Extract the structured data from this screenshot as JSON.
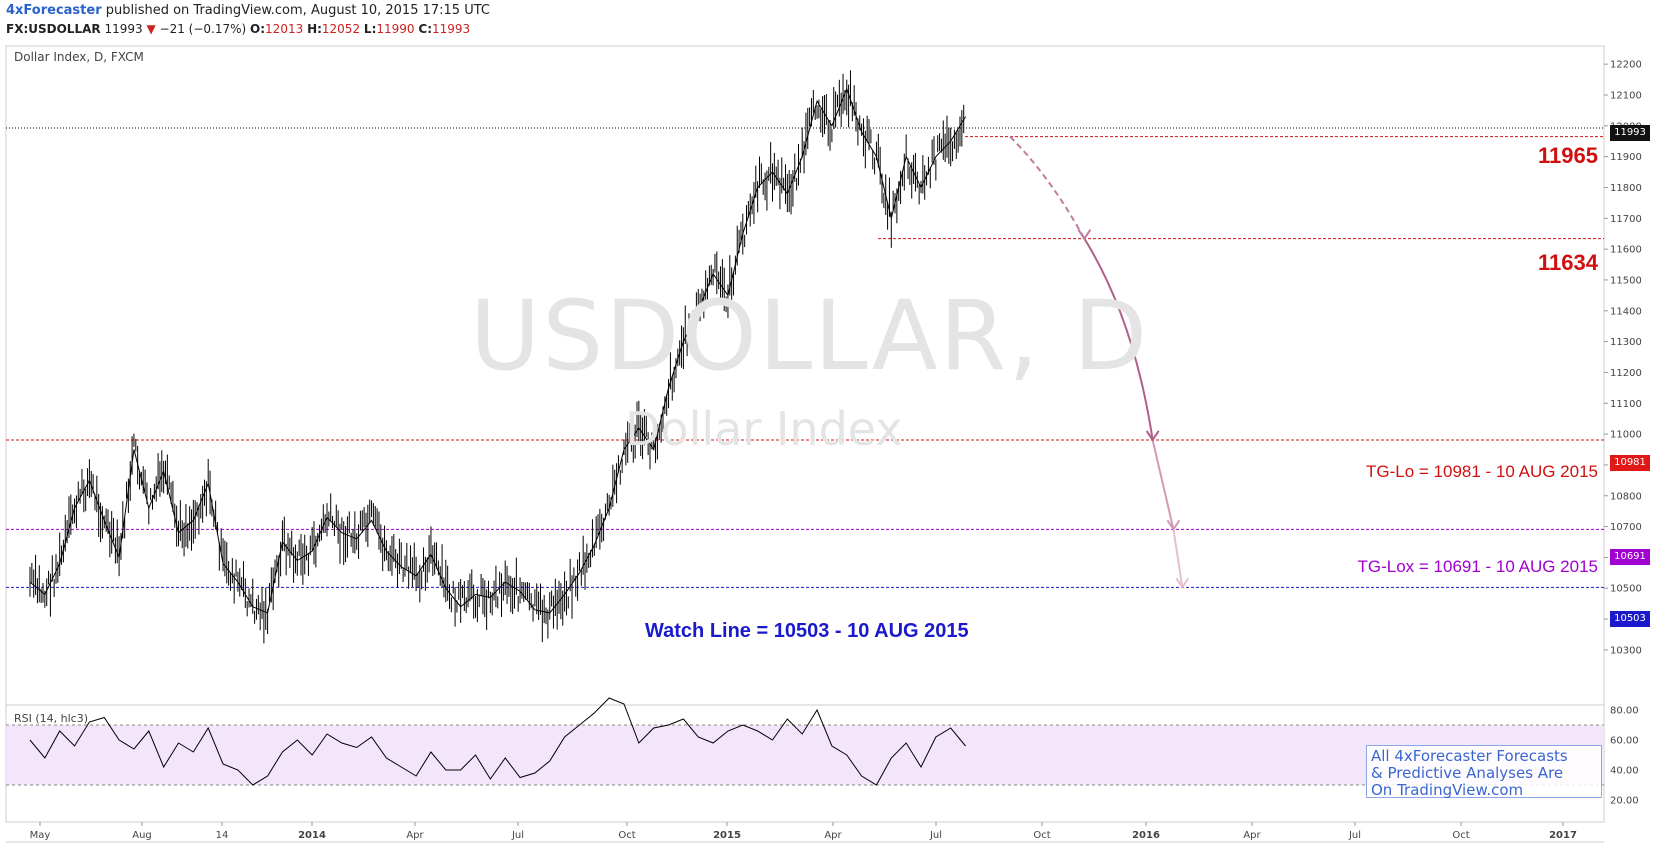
{
  "header": {
    "author": "4xForecaster",
    "published": " published on TradingView.com, August 10, 2015 17:15 UTC",
    "symbol": "FX:USDOLLAR",
    "last": "11993",
    "change": "−21 (−0.17%)",
    "o_label": "O:",
    "o": "12013",
    "h_label": "H:",
    "h": "12052",
    "l_label": "L:",
    "l": "11990",
    "c_label": "C:",
    "c": "11993"
  },
  "pane_label": "Dollar Index, D, FXCM",
  "watermark": {
    "line1": "USDOLLAR, D",
    "line2": "Dollar Index"
  },
  "rsi_label": "RSI (14, hlc3)",
  "levels": {
    "l11965": "11965",
    "l11634": "11634",
    "tg_lo": "TG-Lo = 10981 - 10 AUG 2015",
    "tg_lox": "TG-Lox = 10691 - 10 AUG 2015",
    "watch": "Watch Line = 10503 - 10 AUG 2015"
  },
  "price_tags": {
    "last": "11993",
    "tg_lo": "10981",
    "tg_lox": "10691",
    "watch": "10503"
  },
  "note": [
    "All 4xForecaster Forecasts",
    "& Predictive Analyses Are",
    "On TradingView.com"
  ],
  "colors": {
    "up": "#000000",
    "red": "#d01010",
    "purple": "#a000d0",
    "blue": "#1a1acc",
    "forecast": "#b0608a",
    "rsi_band": "#f3e6fa"
  },
  "chart_data": {
    "type": "line",
    "title": "Dollar Index, D, FXCM",
    "y_ticks": [
      "12200",
      "12100",
      "12000",
      "11900",
      "11800",
      "11700",
      "11600",
      "11500",
      "11400",
      "11300",
      "11200",
      "11100",
      "11000",
      "10900",
      "10800",
      "10700",
      "10600",
      "10500",
      "10400",
      "10300"
    ],
    "ylim": [
      10250,
      12220
    ],
    "x_ticks": [
      "May",
      "Aug",
      "14",
      "2014",
      "Apr",
      "Jul",
      "Oct",
      "2015",
      "Apr",
      "Jul",
      "Oct",
      "2016",
      "Apr",
      "Jul",
      "Oct",
      "2017"
    ],
    "x_ticks_bold": [
      "2014",
      "2015",
      "2016",
      "2017"
    ],
    "horizontal_levels": [
      {
        "value": 11993,
        "style": "dotted",
        "color": "#000000"
      },
      {
        "value": 11965,
        "style": "dashed",
        "color": "#d01010"
      },
      {
        "value": 11634,
        "style": "dashed",
        "color": "#d01010"
      },
      {
        "value": 10981,
        "style": "dashed",
        "color": "#d01010"
      },
      {
        "value": 10691,
        "style": "dashed",
        "color": "#a000d0"
      },
      {
        "value": 10503,
        "style": "dashed",
        "color": "#1a1acc"
      }
    ],
    "series": [
      {
        "x_month_index": [
          0,
          0.5,
          1,
          1.5,
          2,
          2.5,
          3,
          3.5,
          4,
          4.5,
          5,
          5.5,
          6,
          6.5,
          7,
          7.5,
          8,
          8.5,
          9,
          9.5,
          10,
          10.5,
          11,
          11.5,
          12,
          12.5,
          13,
          13.5,
          14,
          14.5,
          15,
          15.5,
          16,
          16.5,
          17,
          17.5,
          18,
          18.5,
          19,
          19.5,
          20,
          20.5,
          21,
          21.5,
          22,
          22.5,
          23,
          23.5,
          24,
          24.5,
          25,
          25.5,
          26,
          26.5,
          27,
          27.5,
          28,
          28.5,
          29,
          29.5,
          30,
          30.5,
          31,
          31.5
        ],
        "values": [
          10520,
          10480,
          10580,
          10760,
          10850,
          10720,
          10600,
          10950,
          10760,
          10880,
          10680,
          10720,
          10840,
          10580,
          10520,
          10440,
          10420,
          10650,
          10590,
          10620,
          10730,
          10680,
          10660,
          10720,
          10620,
          10570,
          10540,
          10610,
          10500,
          10440,
          10480,
          10470,
          10520,
          10490,
          10430,
          10420,
          10480,
          10550,
          10640,
          10760,
          10950,
          11020,
          10950,
          11150,
          11300,
          11400,
          11520,
          11450,
          11650,
          11800,
          11850,
          11780,
          11900,
          12080,
          12000,
          12120,
          11980,
          11900,
          11700,
          11900,
          11800,
          11900,
          11950,
          12030
        ]
      }
    ],
    "rsi": {
      "y_ticks": [
        "80.00",
        "60.00",
        "40.00",
        "20.00"
      ],
      "ylim": [
        18,
        93
      ],
      "bands": [
        30,
        70
      ],
      "values": [
        60,
        48,
        66,
        56,
        72,
        75,
        60,
        54,
        66,
        42,
        58,
        52,
        68,
        44,
        40,
        30,
        36,
        52,
        60,
        50,
        64,
        58,
        55,
        62,
        48,
        42,
        36,
        52,
        40,
        40,
        50,
        34,
        48,
        35,
        38,
        46,
        62,
        70,
        78,
        88,
        84,
        58,
        68,
        70,
        74,
        62,
        58,
        66,
        70,
        66,
        60,
        74,
        64,
        80,
        56,
        50,
        36,
        30,
        48,
        58,
        42,
        62,
        68,
        56
      ]
    },
    "forecast_path": [
      {
        "month_index": 33.0,
        "value": 11965
      },
      {
        "month_index": 35.5,
        "value": 11634
      },
      {
        "month_index": 37.8,
        "value": 10981
      },
      {
        "month_index": 38.5,
        "value": 10691
      },
      {
        "month_index": 38.8,
        "value": 10503
      }
    ]
  }
}
